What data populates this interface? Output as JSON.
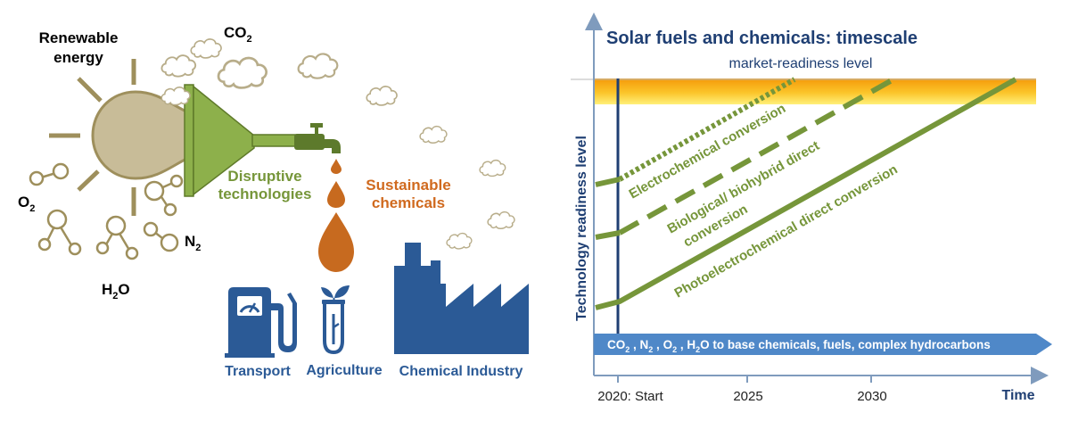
{
  "left": {
    "inputs": {
      "renewable_line1": "Renewable",
      "renewable_line2": "energy",
      "co2": "CO",
      "co2_sub": "2",
      "o2": "O",
      "o2_sub": "2",
      "n2": "N",
      "n2_sub": "2",
      "h2o_a": "H",
      "h2o_sub": "2",
      "h2o_b": "O"
    },
    "process": {
      "line1": "Disruptive",
      "line2": "technologies"
    },
    "output": {
      "line1": "Sustainable",
      "line2": "chemicals"
    },
    "sectors": [
      "Transport",
      "Agriculture",
      "Chemical Industry"
    ]
  },
  "right": {
    "title": "Solar fuels and chemicals: timescale",
    "market_label": "market-readiness level",
    "y_axis_label": "Technology readiness level",
    "x_axis_label": "Time",
    "x_ticks": [
      "2020: Start",
      "2025",
      "2030"
    ],
    "pathways": [
      {
        "line1": "Electrochemical conversion",
        "line2": ""
      },
      {
        "line1": "Biological/ biohybrid direct",
        "line2": "conversion"
      },
      {
        "line1": "Photoelectrochemical direct conversion",
        "line2": ""
      }
    ],
    "banner": {
      "co2": "CO",
      "co2_sub": "2",
      "n2": "N",
      "n2_sub": "2",
      "o2": "O",
      "o2_sub": "2",
      "h2o_a": "H",
      "h2o_sub": "2",
      "rest": "O to base chemicals, fuels, complex hydrocarbons"
    }
  },
  "colors": {
    "olive_green": "#76963a",
    "navy": "#1f3f73",
    "dark_blue": "#2b5a96",
    "orange": "#d06a1f",
    "sun_tan": "#c8bc98",
    "sun_stroke": "#9e8f5c",
    "axis": "#7f9bbd",
    "banner_blue": "#4f88c8",
    "market_band_top": "#f7a20c",
    "market_band_bottom": "#fde56a"
  },
  "icons": [
    "sun-icon",
    "funnel-icon",
    "tap-icon",
    "droplet-icon",
    "cloud-icon",
    "molecule-icon",
    "fuel-pump-icon",
    "seedling-tube-icon",
    "factory-icon"
  ]
}
